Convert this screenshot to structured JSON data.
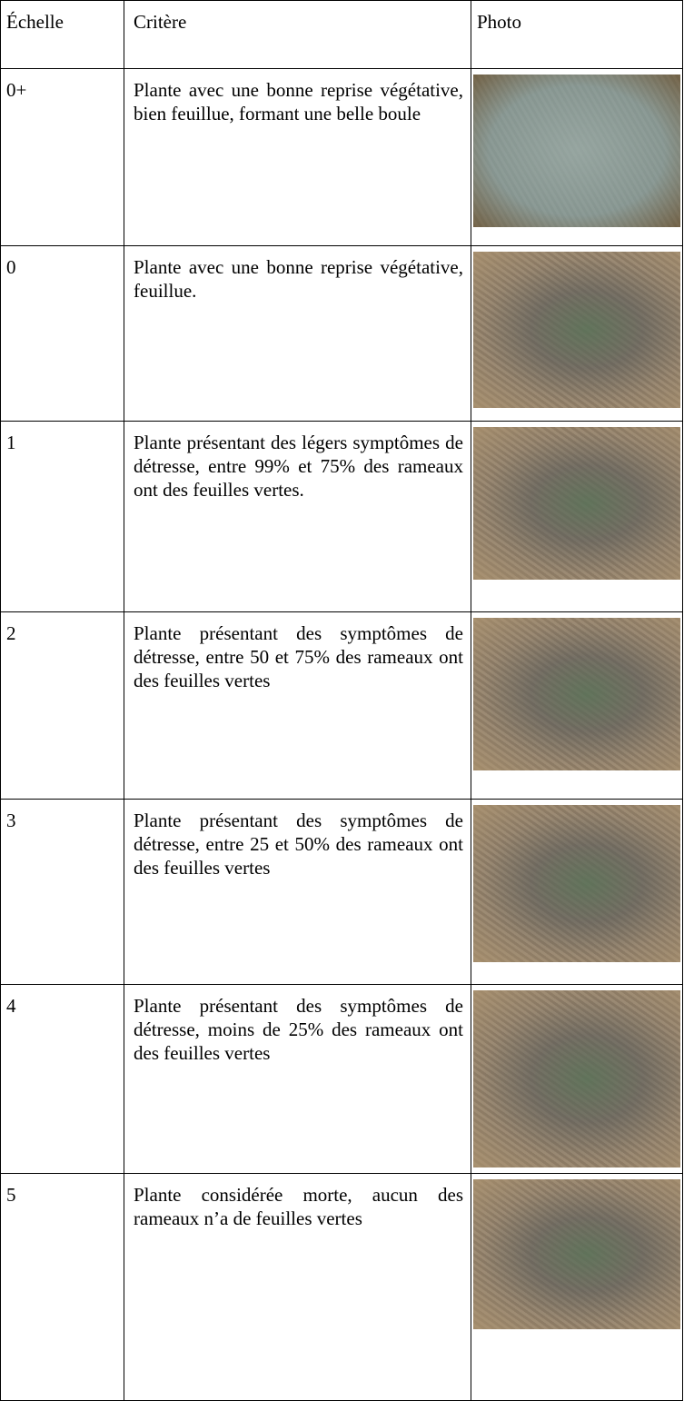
{
  "table": {
    "header": [
      "Échelle",
      "Critère",
      "Photo"
    ],
    "rows": [
      {
        "scale": "0+",
        "criterion": "Plante avec une bonne reprise végétative, bien feuillue, formant une belle boule"
      },
      {
        "scale": "0",
        "criterion": "Plante avec une bonne reprise végétative, feuillue."
      },
      {
        "scale": "1",
        "criterion": "Plante présentant des légers symptômes de détresse, entre 99% et 75% des rameaux ont des feuilles vertes."
      },
      {
        "scale": "2",
        "criterion": "Plante présentant des symptômes de détresse, entre 50 et 75% des rameaux ont des feuilles vertes"
      },
      {
        "scale": "3",
        "criterion": "Plante présentant des symptômes de détresse, entre 25 et 50% des rameaux ont des feuilles vertes"
      },
      {
        "scale": "4",
        "criterion": "Plante présentant des symptômes de détresse, moins de 25% des rameaux ont des feuilles vertes"
      },
      {
        "scale": "5",
        "criterion": "Plante considérée morte, aucun des rameaux n’a de feuilles vertes"
      }
    ]
  }
}
